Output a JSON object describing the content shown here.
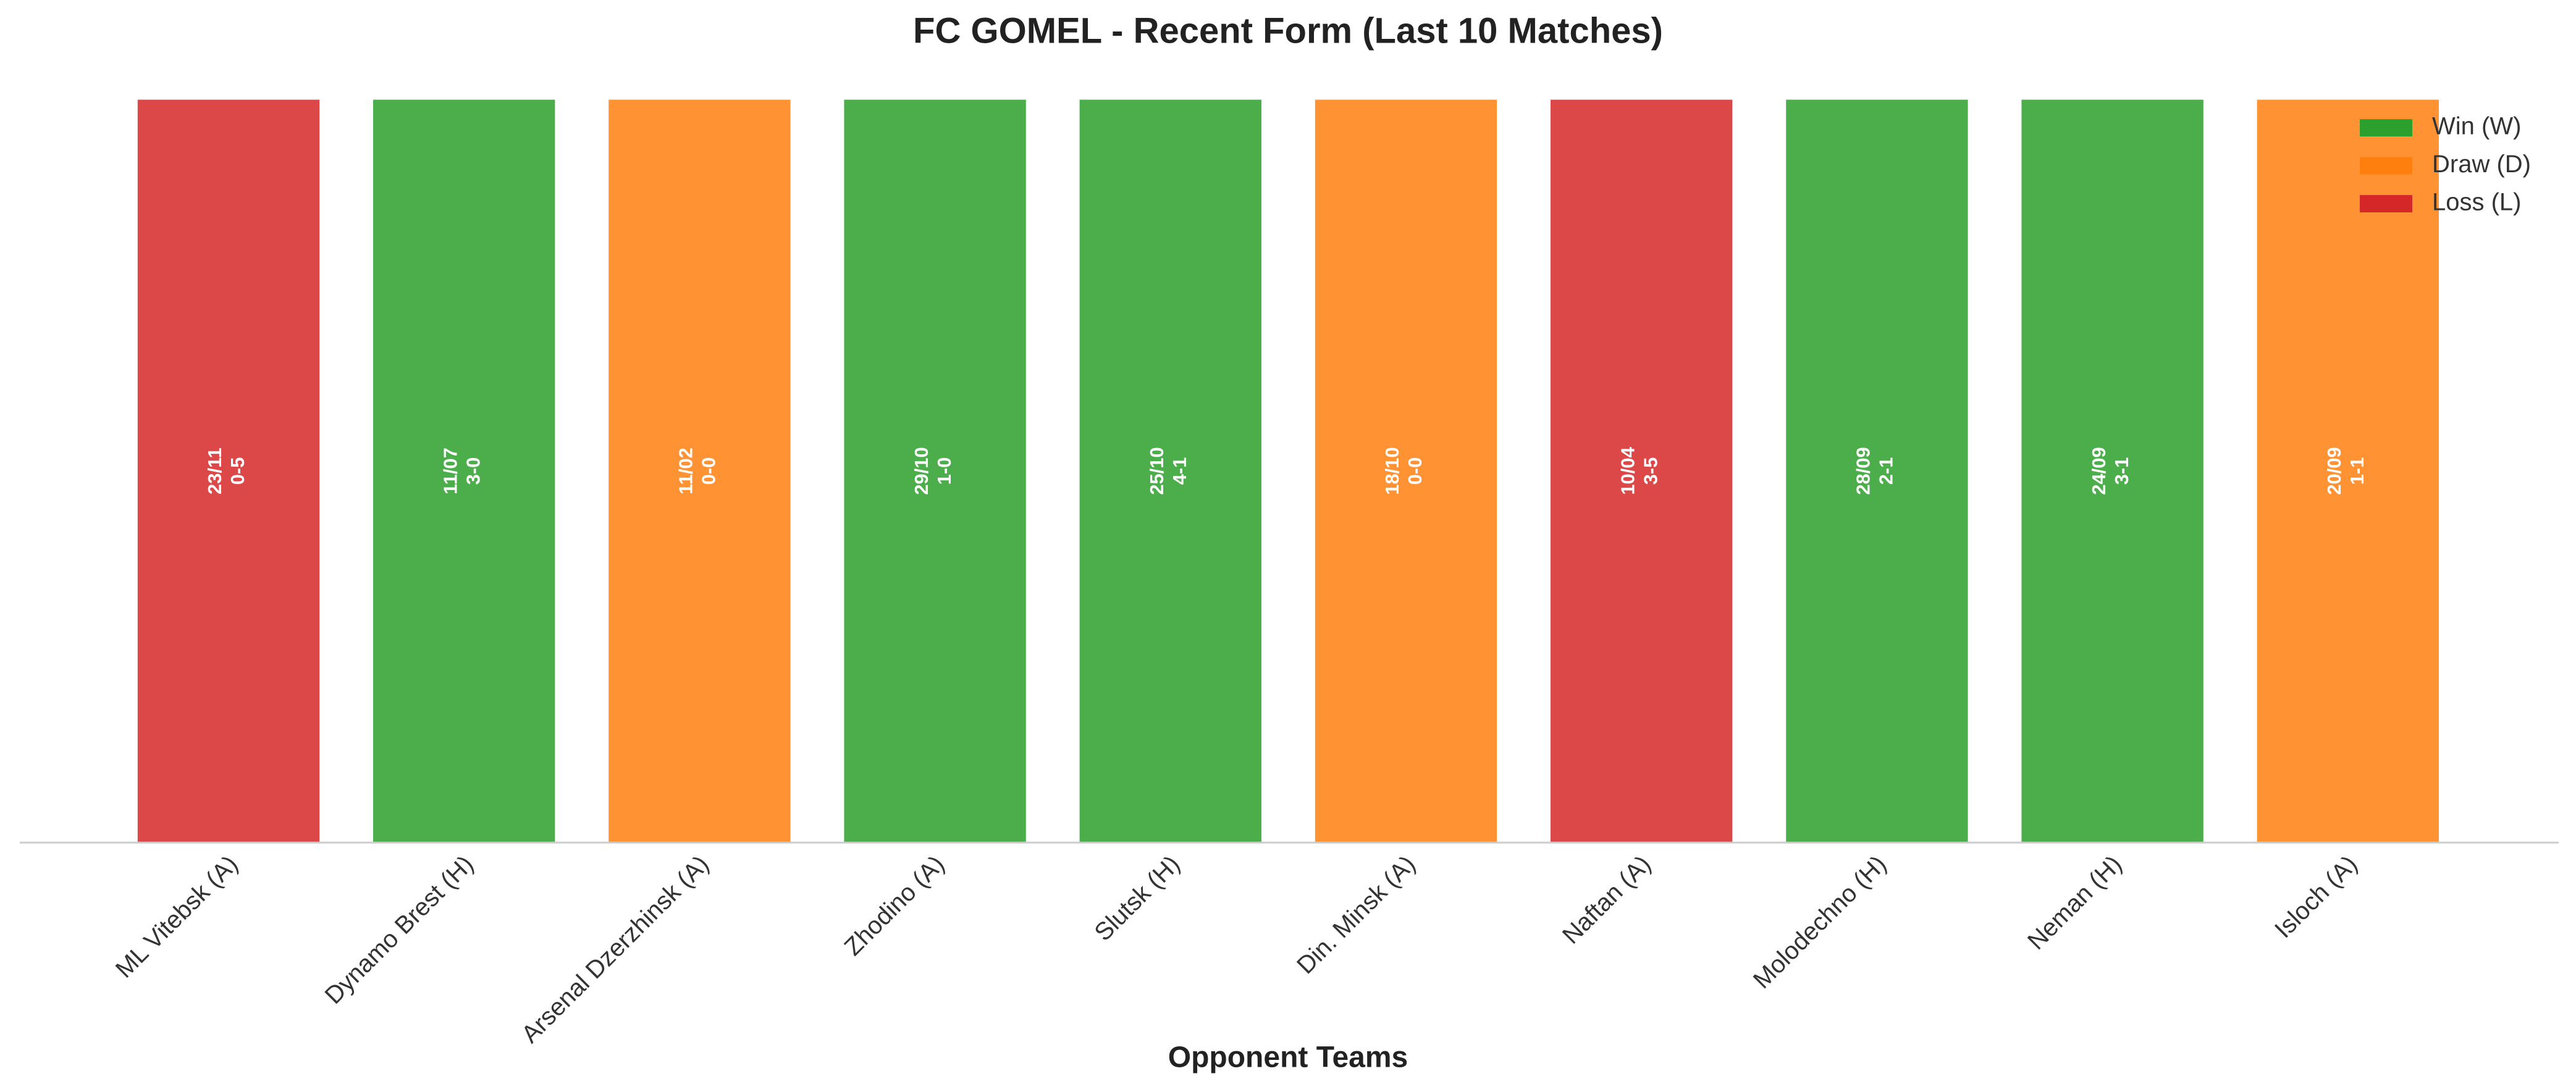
{
  "chart_data": {
    "type": "bar",
    "title": "FC GOMEL - Recent Form (Last 10 Matches)",
    "xlabel": "Opponent Teams",
    "categories": [
      "ML Vitebsk (A)",
      "Dynamo Brest (H)",
      "Arsenal Dzerzhinsk (A)",
      "Zhodino (A)",
      "Slutsk (H)",
      "Din. Minsk (A)",
      "Naftan (A)",
      "Molodechno (H)",
      "Neman (H)",
      "Isloch (A)"
    ],
    "dates": [
      "23/11",
      "11/07",
      "11/02",
      "29/10",
      "25/10",
      "18/10",
      "10/04",
      "28/09",
      "24/09",
      "20/09"
    ],
    "scores": [
      "0-5",
      "3-0",
      "0-0",
      "1-0",
      "4-1",
      "0-0",
      "3-5",
      "2-1",
      "3-1",
      "1-1"
    ],
    "series": [
      {
        "name": "Win (W)",
        "color": "#2ca02c",
        "values": [
          null,
          1,
          null,
          1,
          1,
          null,
          null,
          1,
          1,
          null
        ]
      },
      {
        "name": "Draw (D)",
        "color": "#ff7f0e",
        "values": [
          null,
          null,
          1,
          null,
          null,
          1,
          null,
          null,
          null,
          1
        ]
      },
      {
        "name": "Loss (L)",
        "color": "#d62728",
        "values": [
          1,
          null,
          null,
          null,
          null,
          null,
          1,
          null,
          null,
          null
        ]
      }
    ],
    "ylim": [
      0,
      1
    ],
    "legend": "upper right"
  }
}
